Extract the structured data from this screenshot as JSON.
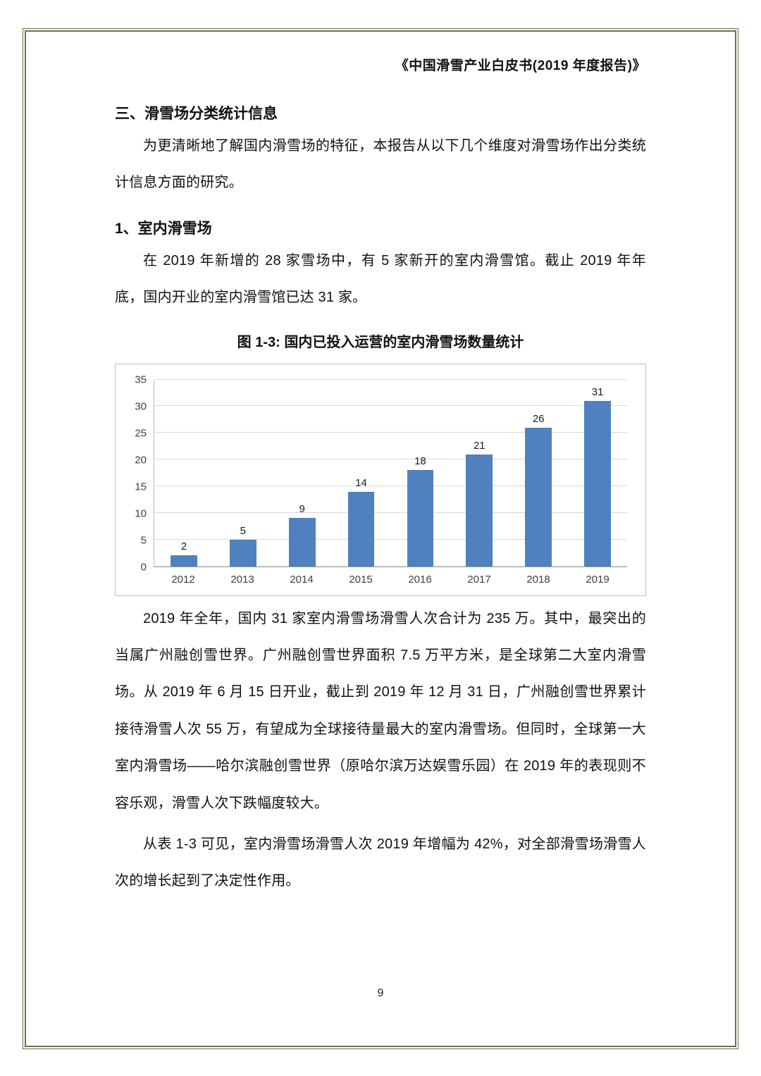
{
  "header": {
    "title": "《中国滑雪产业白皮书(2019 年度报告)》"
  },
  "body": {
    "section_heading": "三、滑雪场分类统计信息",
    "para_intro": "为更清晰地了解国内滑雪场的特征，本报告从以下几个维度对滑雪场作出分类统计信息方面的研究。",
    "sub_heading": "1、室内滑雪场",
    "para_indoor": "在 2019 年新增的 28 家雪场中，有 5 家新开的室内滑雪馆。截止 2019 年年底，国内开业的室内滑雪馆已达 31 家。",
    "figure_caption": "图 1-3: 国内已投入运营的室内滑雪场数量统计",
    "para_detail": "2019 年全年，国内 31 家室内滑雪场滑雪人次合计为 235 万。其中，最突出的当属广州融创雪世界。广州融创雪世界面积 7.5 万平方米，是全球第二大室内滑雪场。从 2019 年 6 月 15 日开业，截止到 2019 年 12 月 31 日，广州融创雪世界累计接待滑雪人次 55 万，有望成为全球接待量最大的室内滑雪场。但同时，全球第一大室内滑雪场——哈尔滨融创雪世界（原哈尔滨万达娱雪乐园）在 2019 年的表现则不容乐观，滑雪人次下跌幅度较大。",
    "para_growth": "从表 1-3 可见，室内滑雪场滑雪人次 2019 年增幅为 42%，对全部滑雪场滑雪人次的增长起到了决定性作用。"
  },
  "chart_data": {
    "type": "bar",
    "title": "图 1-3: 国内已投入运营的室内滑雪场数量统计",
    "categories": [
      "2012",
      "2013",
      "2014",
      "2015",
      "2016",
      "2017",
      "2018",
      "2019"
    ],
    "values": [
      2,
      5,
      9,
      14,
      18,
      21,
      26,
      31
    ],
    "xlabel": "",
    "ylabel": "",
    "ylim": [
      0,
      35
    ],
    "ytick_step": 5,
    "grid": true,
    "legend": "none",
    "bar_color": "#4E81BD"
  },
  "footer": {
    "page_number": "9"
  }
}
